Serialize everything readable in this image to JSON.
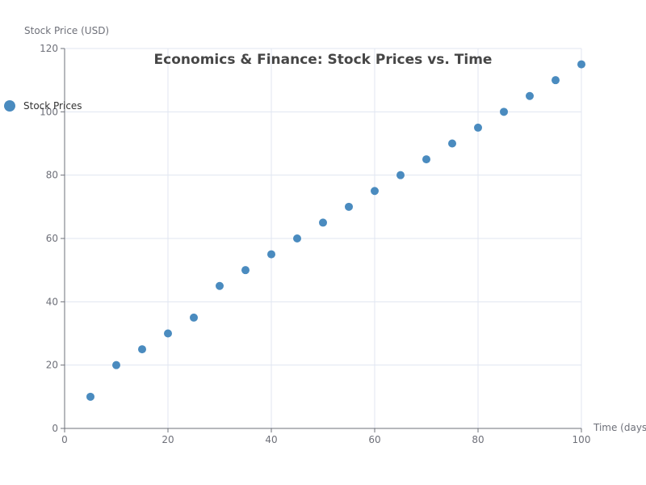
{
  "chart_data": {
    "type": "scatter",
    "title": "Economics & Finance: Stock Prices vs. Time",
    "xlabel": "Time (days)",
    "ylabel": "Stock Price (USD)",
    "xlim": [
      0,
      100
    ],
    "ylim": [
      0,
      120
    ],
    "x_ticks": [
      0,
      20,
      40,
      60,
      80,
      100
    ],
    "y_ticks": [
      0,
      20,
      40,
      60,
      80,
      100,
      120
    ],
    "grid": true,
    "legend_position": "left",
    "series": [
      {
        "name": "Stock Prices",
        "color": "#4a8bbf",
        "points": [
          {
            "x": 5,
            "y": 10
          },
          {
            "x": 10,
            "y": 20
          },
          {
            "x": 15,
            "y": 25
          },
          {
            "x": 20,
            "y": 30
          },
          {
            "x": 25,
            "y": 35
          },
          {
            "x": 30,
            "y": 45
          },
          {
            "x": 35,
            "y": 50
          },
          {
            "x": 40,
            "y": 55
          },
          {
            "x": 45,
            "y": 60
          },
          {
            "x": 50,
            "y": 65
          },
          {
            "x": 55,
            "y": 70
          },
          {
            "x": 60,
            "y": 75
          },
          {
            "x": 65,
            "y": 80
          },
          {
            "x": 70,
            "y": 85
          },
          {
            "x": 75,
            "y": 90
          },
          {
            "x": 80,
            "y": 95
          },
          {
            "x": 85,
            "y": 100
          },
          {
            "x": 90,
            "y": 105
          },
          {
            "x": 95,
            "y": 110
          },
          {
            "x": 100,
            "y": 115
          }
        ]
      }
    ]
  },
  "colors": {
    "grid": "#e0e6f1",
    "axis": "#6e7079"
  }
}
